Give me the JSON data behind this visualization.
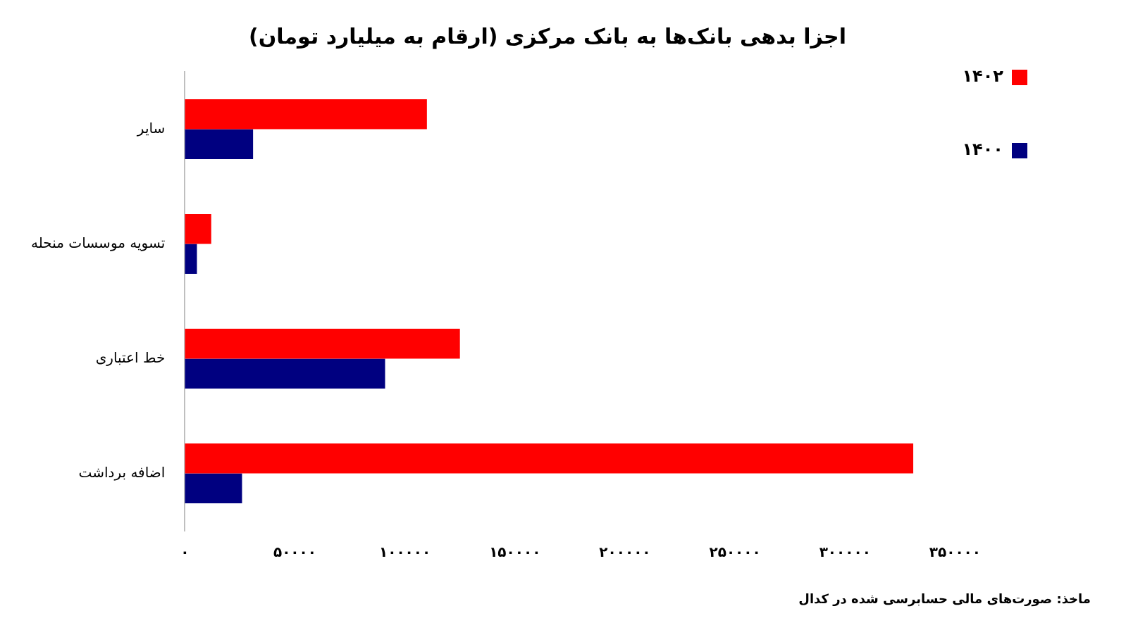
{
  "chart_data": {
    "type": "bar",
    "orientation": "horizontal",
    "title": "اجزا بدهی بانک‌ها به بانک مرکزی (ارقام به میلیارد تومان)",
    "categories": [
      "سایر",
      "تسویه موسسات منحله",
      "خط اعتباری",
      "اضافه برداشت"
    ],
    "series": [
      {
        "name": "۱۴۰۲",
        "color": "#ff0000",
        "values": [
          110000,
          12000,
          125000,
          331000
        ]
      },
      {
        "name": "۱۴۰۰",
        "color": "#000080",
        "values": [
          31000,
          5500,
          91000,
          26000
        ]
      }
    ],
    "xlim": [
      0,
      350000
    ],
    "xticks": [
      {
        "value": 0,
        "label": "۰"
      },
      {
        "value": 50000,
        "label": "۵۰۰۰۰"
      },
      {
        "value": 100000,
        "label": "۱۰۰۰۰۰"
      },
      {
        "value": 150000,
        "label": "۱۵۰۰۰۰"
      },
      {
        "value": 200000,
        "label": "۲۰۰۰۰۰"
      },
      {
        "value": 250000,
        "label": "۲۵۰۰۰۰"
      },
      {
        "value": 300000,
        "label": "۳۰۰۰۰۰"
      },
      {
        "value": 350000,
        "label": "۳۵۰۰۰۰"
      }
    ],
    "grid": false,
    "legend": "top right",
    "annotations": [
      "ماخذ: صورت‌های مالی حسابرسی شده در کدال"
    ]
  }
}
